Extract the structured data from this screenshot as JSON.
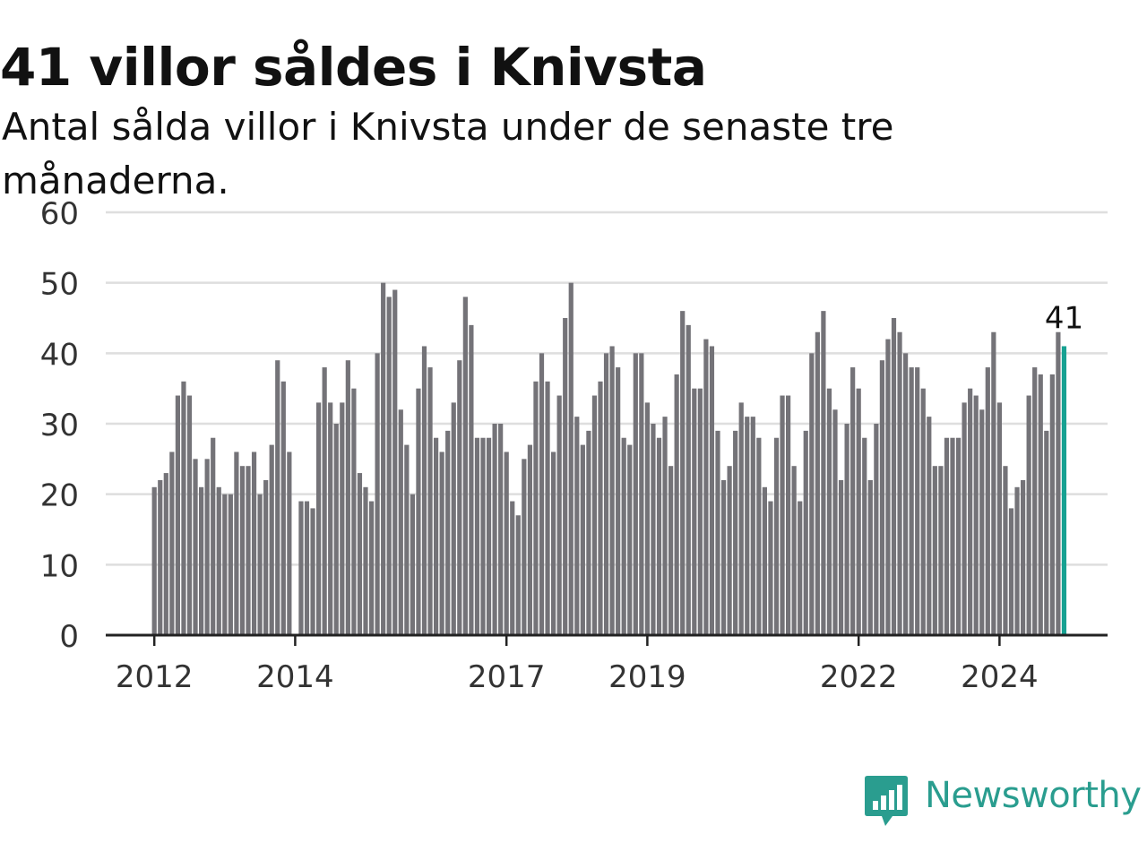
{
  "header": {
    "title": "41 villor såldes i Knivsta",
    "subtitle": "Antal sålda villor i Knivsta under de senaste tre månaderna."
  },
  "brand": {
    "name": "Newsworthy",
    "logo_icon": "bar-chart-speech-bubble-icon",
    "color": "#2a9d8f"
  },
  "colors": {
    "bar": "#747378",
    "highlight": "#17a192",
    "grid": "#dedede",
    "axis": "#222222",
    "text": "#333333"
  },
  "chart_data": {
    "type": "bar",
    "title": "41 villor såldes i Knivsta",
    "ylim": [
      0,
      60
    ],
    "yticks": [
      0,
      10,
      20,
      30,
      40,
      50,
      60
    ],
    "grid": true,
    "x_tick_labels": [
      "2012",
      "2014",
      "2017",
      "2019",
      "2022",
      "2024"
    ],
    "series_start": "2012-01",
    "frequency": "monthly",
    "values": [
      21,
      22,
      23,
      26,
      34,
      36,
      34,
      25,
      21,
      25,
      28,
      21,
      20,
      20,
      26,
      24,
      24,
      26,
      20,
      22,
      27,
      39,
      36,
      26,
      0,
      19,
      19,
      18,
      33,
      38,
      33,
      30,
      33,
      39,
      35,
      23,
      21,
      19,
      40,
      50,
      48,
      49,
      32,
      27,
      20,
      35,
      41,
      38,
      28,
      26,
      29,
      33,
      39,
      48,
      44,
      28,
      28,
      28,
      30,
      30,
      26,
      19,
      17,
      25,
      27,
      36,
      40,
      36,
      26,
      34,
      45,
      50,
      31,
      27,
      29,
      34,
      36,
      40,
      41,
      38,
      28,
      27,
      40,
      40,
      33,
      30,
      28,
      31,
      24,
      37,
      46,
      44,
      35,
      35,
      42,
      41,
      29,
      22,
      24,
      29,
      33,
      31,
      31,
      28,
      21,
      19,
      28,
      34,
      34,
      24,
      19,
      29,
      40,
      43,
      46,
      35,
      32,
      22,
      30,
      38,
      35,
      28,
      22,
      30,
      39,
      42,
      45,
      43,
      40,
      38,
      38,
      35,
      31,
      24,
      24,
      28,
      28,
      28,
      33,
      35,
      34,
      32,
      38,
      43,
      33,
      24,
      18,
      21,
      22,
      34,
      38,
      37,
      29,
      37,
      43,
      41
    ],
    "highlight": {
      "label": "41",
      "value": 41
    }
  }
}
